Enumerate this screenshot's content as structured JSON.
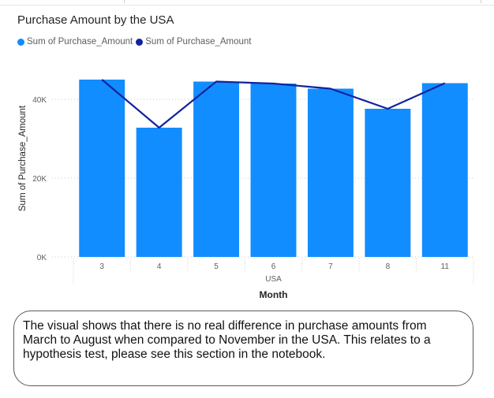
{
  "chart_data": {
    "type": "bar",
    "title": "Purchase Amount by the USA",
    "legend": [
      "Sum of Purchase_Amount",
      "Sum of Purchase_Amount"
    ],
    "legend_position": "top-left",
    "categories": [
      "3",
      "4",
      "5",
      "6",
      "7",
      "8",
      "11"
    ],
    "group_label": "USA",
    "xlabel": "Month",
    "ylabel": "Sum of Purchase_Amount",
    "yticks": [
      "0K",
      "20K",
      "40K"
    ],
    "ylim": [
      0,
      50000
    ],
    "grid": true,
    "series": [
      {
        "name": "Sum of Purchase_Amount",
        "type": "bar",
        "color": "#118DFF",
        "values": [
          45000,
          32800,
          44500,
          44000,
          42700,
          37600,
          44100
        ]
      },
      {
        "name": "Sum of Purchase_Amount",
        "type": "line",
        "color": "#12239E",
        "values": [
          45000,
          32800,
          44500,
          44000,
          42700,
          37600,
          44100
        ]
      }
    ]
  },
  "note": {
    "text": "The visual shows that there is no real difference in purchase amounts from March to August when compared to November in the USA. This relates to a hypothesis test, please see this section in the notebook."
  }
}
